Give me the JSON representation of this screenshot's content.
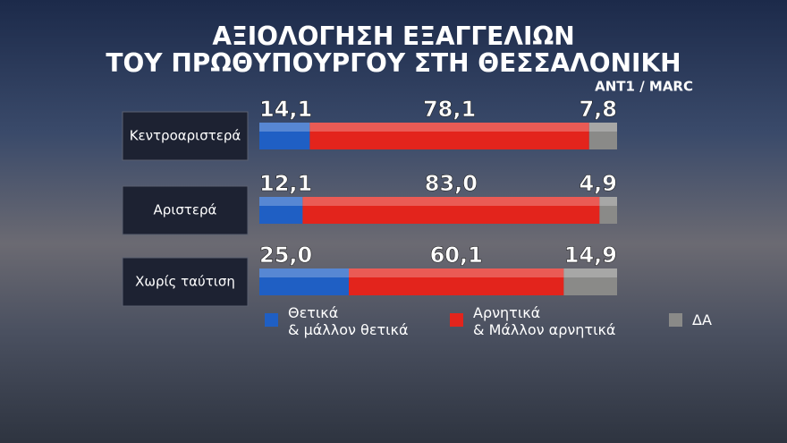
{
  "chart_data": {
    "type": "stacked-bar-horizontal",
    "title": [
      "ΑΞΙΟΛΟΓΗΣΗ ΕΞΑΓΓΕΛΙΩΝ",
      "ΤΟΥ ΠΡΩΘΥΠΟΥΡΓΟΥ ΣΤΗ ΘΕΣΣΑΛΟΝΙΚΗ"
    ],
    "source": "ΑΝΤ1 / MARC",
    "categories": [
      "Κεντροαριστερά",
      "Αριστερά",
      "Χωρίς ταύτιση"
    ],
    "xlim": [
      0,
      100
    ],
    "series": [
      {
        "name": "Θετικά\n& μάλλον θετικά",
        "color": "#1f5fc4",
        "values": [
          14.1,
          12.1,
          25.0
        ],
        "value_labels": [
          "14,1",
          "12,1",
          "25,0"
        ]
      },
      {
        "name": "Αρνητικά\n& Μάλλον αρνητικά",
        "color": "#e3241c",
        "values": [
          78.1,
          83.0,
          60.1
        ],
        "value_labels": [
          "78,1",
          "83,0",
          "60,1"
        ]
      },
      {
        "name": "ΔΑ",
        "color": "#8a8a88",
        "values": [
          7.8,
          4.9,
          14.9
        ],
        "value_labels": [
          "7,8",
          "4,9",
          "14,9"
        ]
      }
    ]
  }
}
